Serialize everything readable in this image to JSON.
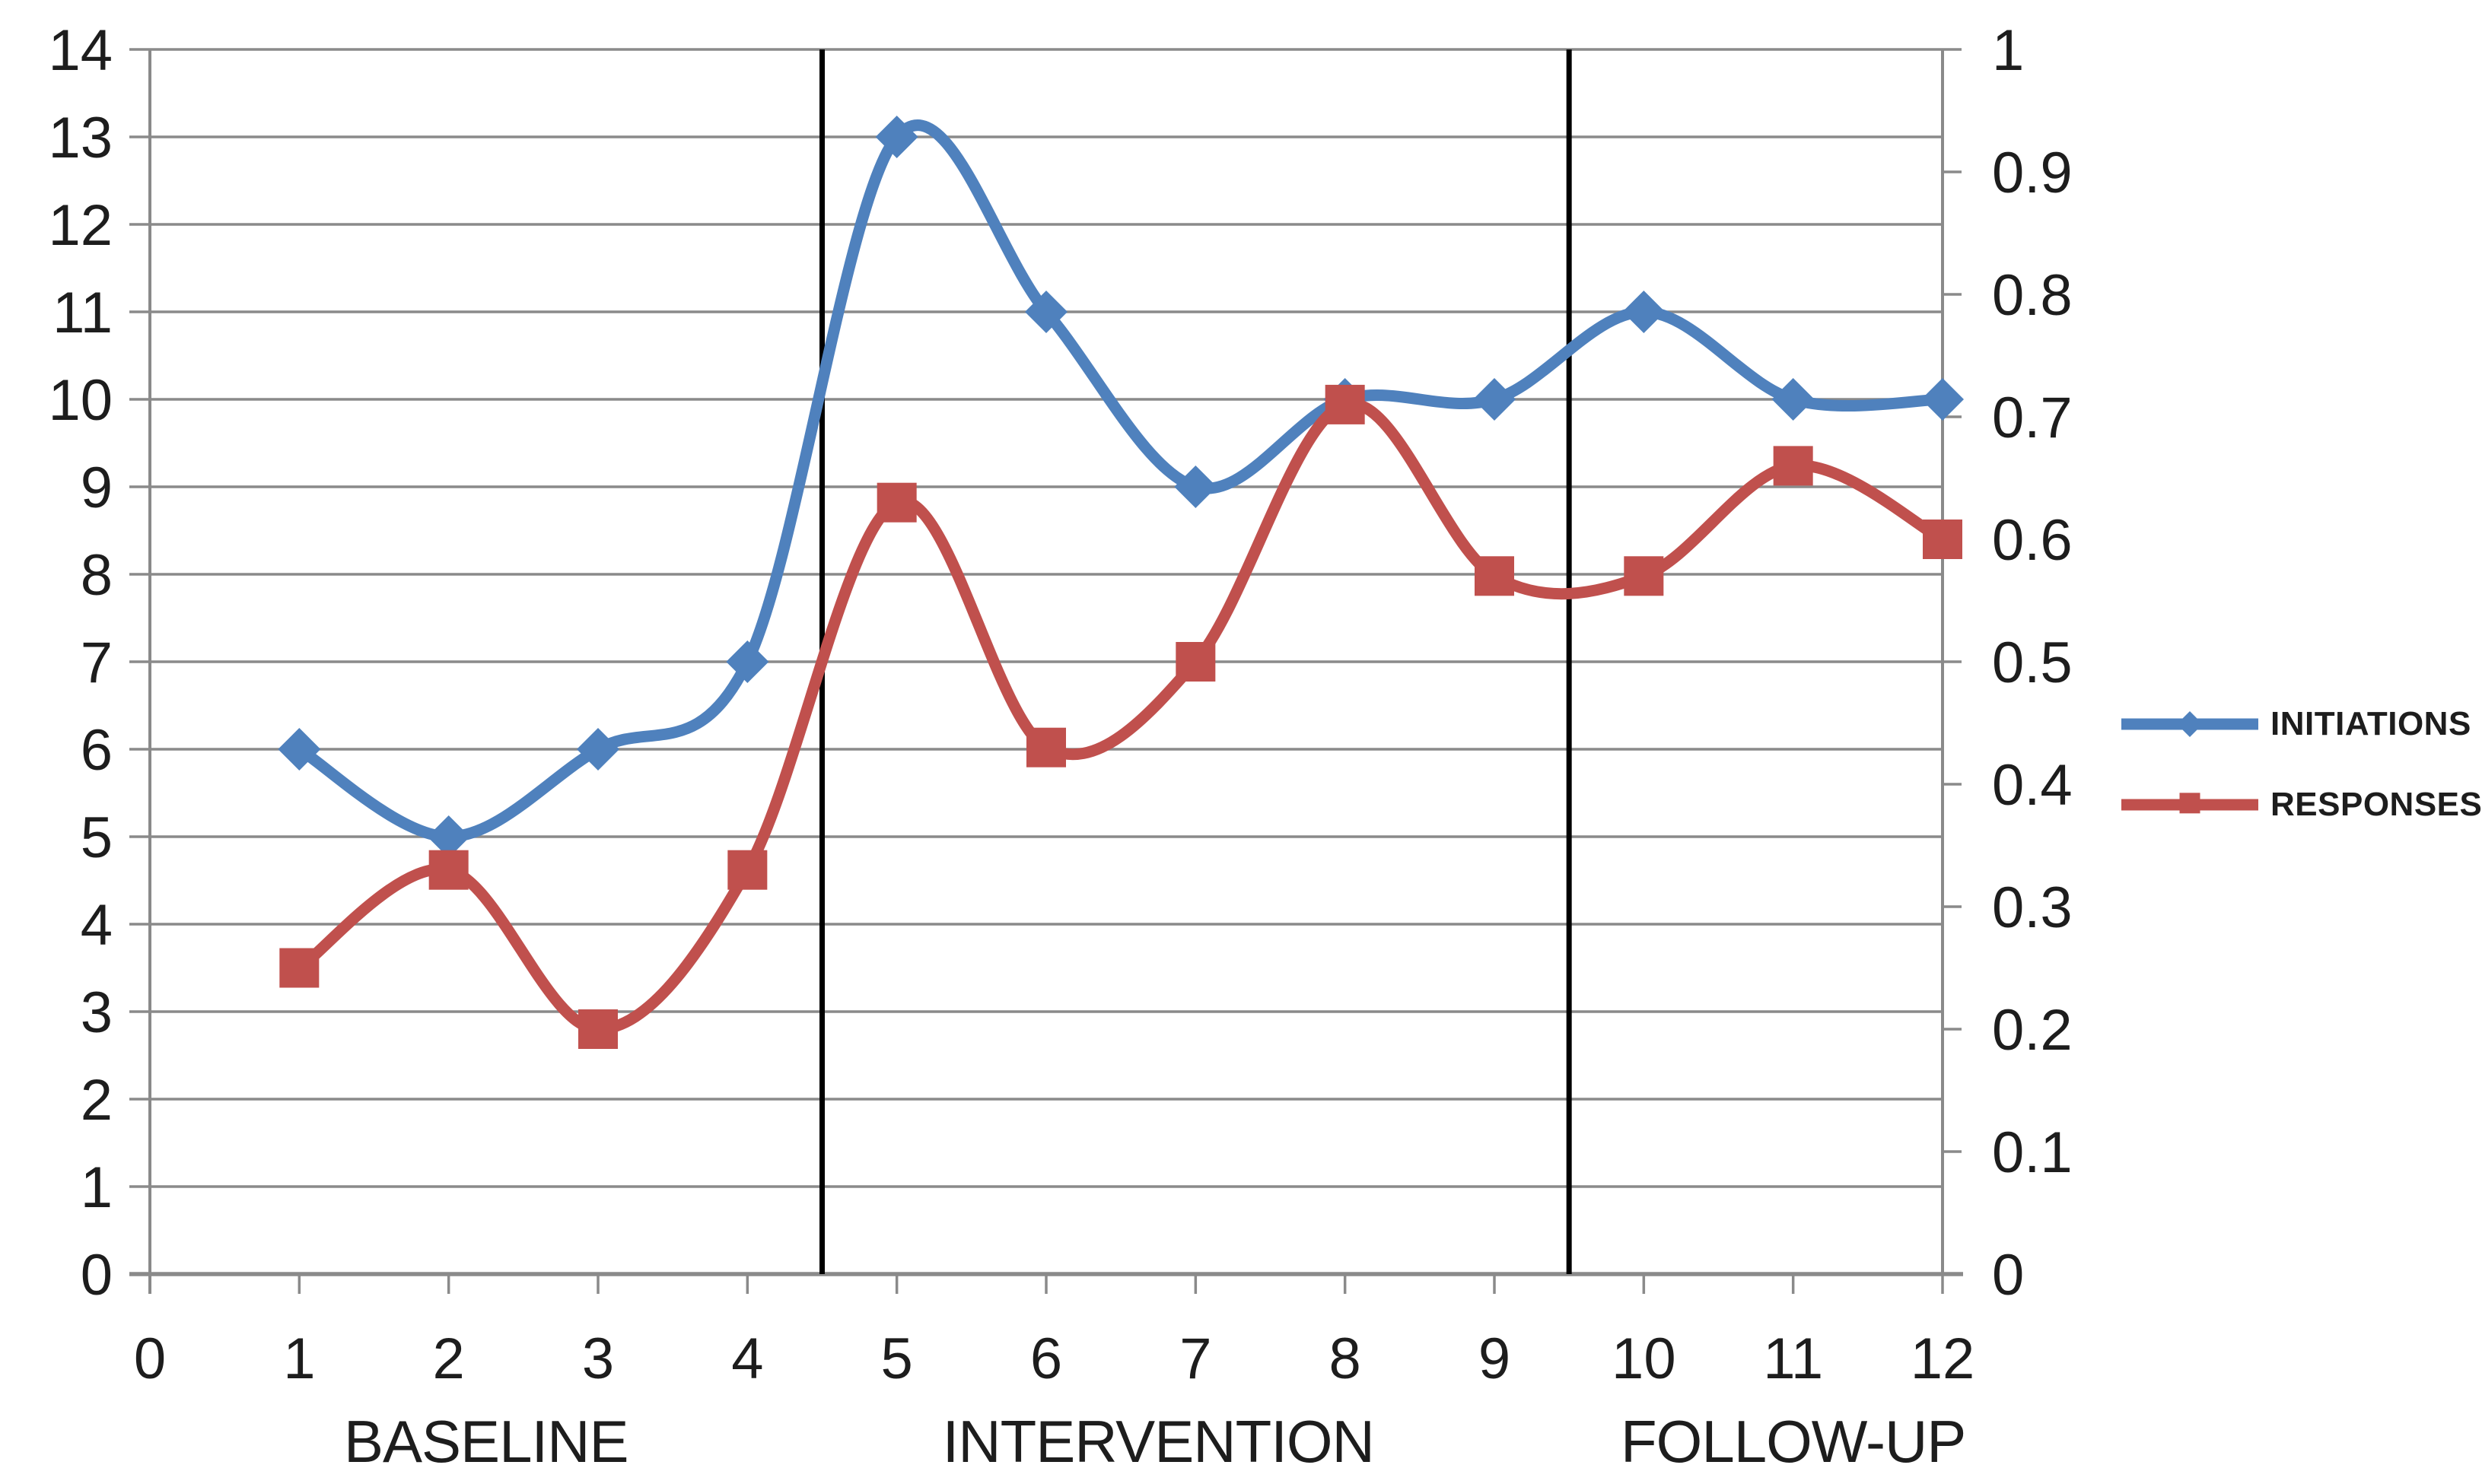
{
  "chart_data": {
    "type": "line",
    "smoothed": true,
    "x": [
      1,
      2,
      3,
      4,
      5,
      6,
      7,
      8,
      9,
      10,
      11,
      12
    ],
    "series": [
      {
        "name": "INITIATIONS",
        "axis": "left",
        "color": "#4F81BD",
        "marker": "diamond",
        "values": [
          6,
          5,
          6,
          7,
          13,
          11,
          9,
          10,
          10,
          11,
          10,
          10
        ]
      },
      {
        "name": "RESPONSES",
        "axis": "right",
        "color": "#C0504D",
        "marker": "square",
        "values": [
          0.25,
          0.33,
          0.2,
          0.33,
          0.63,
          0.43,
          0.5,
          0.71,
          0.57,
          0.57,
          0.66,
          0.6
        ]
      }
    ],
    "x_axis": {
      "min": 0,
      "max": 12,
      "tick_labels": [
        "0",
        "1",
        "2",
        "3",
        "4",
        "5",
        "6",
        "7",
        "8",
        "9",
        "10",
        "11",
        "12"
      ]
    },
    "left_axis": {
      "min": 0,
      "max": 14,
      "tick_labels": [
        "0",
        "1",
        "2",
        "3",
        "4",
        "5",
        "6",
        "7",
        "8",
        "9",
        "10",
        "11",
        "12",
        "13",
        "14"
      ]
    },
    "right_axis": {
      "min": 0,
      "max": 1,
      "tick_labels": [
        "0",
        "0.1",
        "0.2",
        "0.3",
        "0.4",
        "0.5",
        "0.6",
        "0.7",
        "0.8",
        "0.9",
        "1"
      ]
    },
    "phase_dividers_x": [
      4.5,
      9.5
    ],
    "phases": [
      {
        "label": "BASELINE",
        "center_x": 2.25
      },
      {
        "label": "INTERVENTION",
        "center_x": 6.75
      },
      {
        "label": "FOLLOW-UP",
        "center_x": 11
      }
    ],
    "legend_position": "right",
    "grid": "horizontal",
    "title": "",
    "xlabel": "",
    "ylabel": ""
  },
  "colors": {
    "series_blue": "#4F81BD",
    "series_red": "#C0504D",
    "gridline": "#8a8a8a",
    "axis_line": "#8a8a8a",
    "phase_divider": "#000000",
    "text": "#1d1d1d",
    "background": "#FFFFFF"
  }
}
